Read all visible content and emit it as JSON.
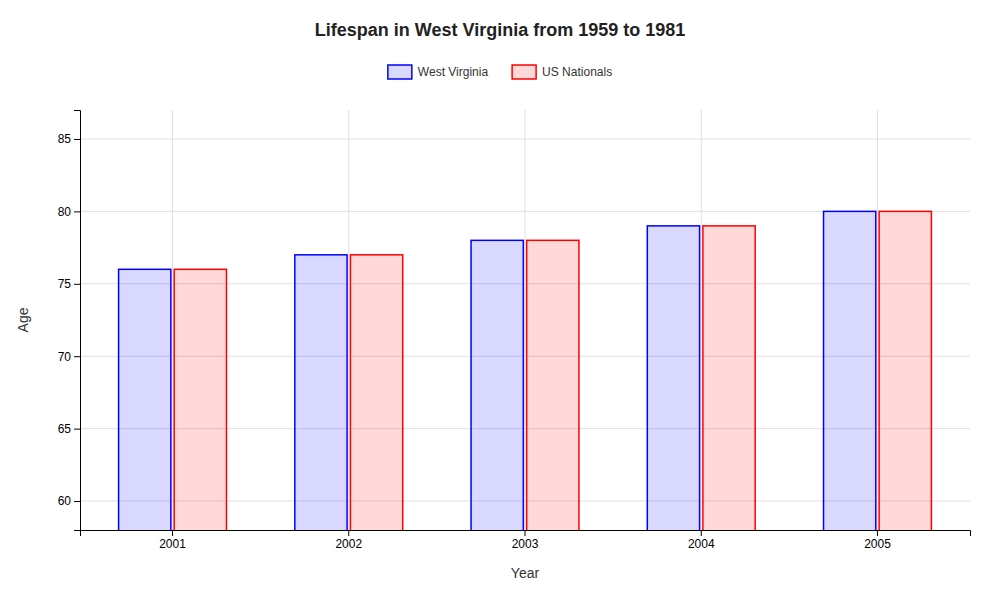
{
  "chart_data": {
    "type": "bar",
    "title": "Lifespan in West Virginia from 1959 to 1981",
    "xlabel": "Year",
    "ylabel": "Age",
    "categories": [
      "2001",
      "2002",
      "2003",
      "2004",
      "2005"
    ],
    "series": [
      {
        "name": "West Virginia",
        "color": "#0000ff",
        "values": [
          76,
          77,
          78,
          79,
          80
        ]
      },
      {
        "name": "US Nationals",
        "color": "#ff0000",
        "values": [
          76,
          77,
          78,
          79,
          80
        ]
      }
    ],
    "ylim": [
      58,
      87
    ],
    "yticks": [
      60,
      65,
      70,
      75,
      80,
      85
    ],
    "grid": true,
    "legend": "top"
  }
}
